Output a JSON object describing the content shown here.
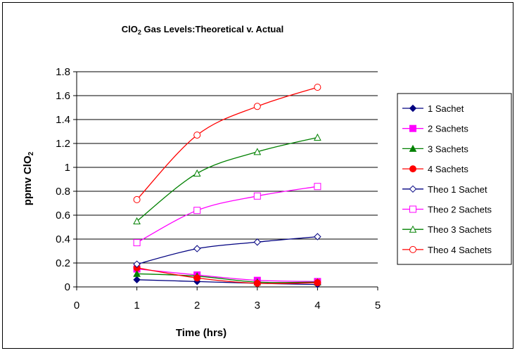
{
  "chart_data": {
    "type": "line",
    "title": "ClO",
    "title_subscript": "2",
    "title_rest": " Gas Levels:Theoretical v. Actual",
    "xlabel": "Time (hrs)",
    "ylabel": "ppmv ClO",
    "ylabel_subscript": "2",
    "xlim": [
      0,
      5
    ],
    "ylim": [
      0,
      1.8
    ],
    "x_ticks": [
      "0",
      "1",
      "2",
      "3",
      "4",
      "5"
    ],
    "y_ticks": [
      "0",
      "0.2",
      "0.4",
      "0.6",
      "0.8",
      "1",
      "1.2",
      "1.4",
      "1.6",
      "1.8"
    ],
    "grid": "horizontal",
    "legend_position": "right",
    "series": [
      {
        "name": "1 Sachet",
        "color": "#000080",
        "marker": "filled-diamond",
        "x": [
          1,
          2,
          3,
          4
        ],
        "y": [
          0.06,
          0.045,
          0.03,
          0.02
        ]
      },
      {
        "name": "2 Sachets",
        "color": "#ff00ff",
        "marker": "filled-square",
        "x": [
          1,
          2,
          3,
          4
        ],
        "y": [
          0.15,
          0.1,
          0.055,
          0.045
        ]
      },
      {
        "name": "3 Sachets",
        "color": "#008000",
        "marker": "filled-triangle",
        "x": [
          1,
          2,
          3,
          4
        ],
        "y": [
          0.11,
          0.09,
          0.04,
          0.04
        ]
      },
      {
        "name": "4 Sachets",
        "color": "#ff0000",
        "marker": "filled-circle",
        "x": [
          1,
          2,
          3,
          4
        ],
        "y": [
          0.16,
          0.075,
          0.03,
          0.035
        ]
      },
      {
        "name": "Theo 1 Sachet",
        "color": "#000080",
        "marker": "open-diamond",
        "x": [
          1,
          2,
          3,
          4
        ],
        "y": [
          0.19,
          0.32,
          0.375,
          0.42
        ]
      },
      {
        "name": "Theo 2 Sachets",
        "color": "#ff00ff",
        "marker": "open-square",
        "x": [
          1,
          2,
          3,
          4
        ],
        "y": [
          0.37,
          0.64,
          0.76,
          0.84
        ]
      },
      {
        "name": "Theo 3 Sachets",
        "color": "#008000",
        "marker": "open-triangle",
        "x": [
          1,
          2,
          3,
          4
        ],
        "y": [
          0.55,
          0.95,
          1.13,
          1.25
        ]
      },
      {
        "name": "Theo 4 Sachets",
        "color": "#ff0000",
        "marker": "open-circle",
        "x": [
          1,
          2,
          3,
          4
        ],
        "y": [
          0.73,
          1.27,
          1.51,
          1.67
        ]
      }
    ]
  }
}
